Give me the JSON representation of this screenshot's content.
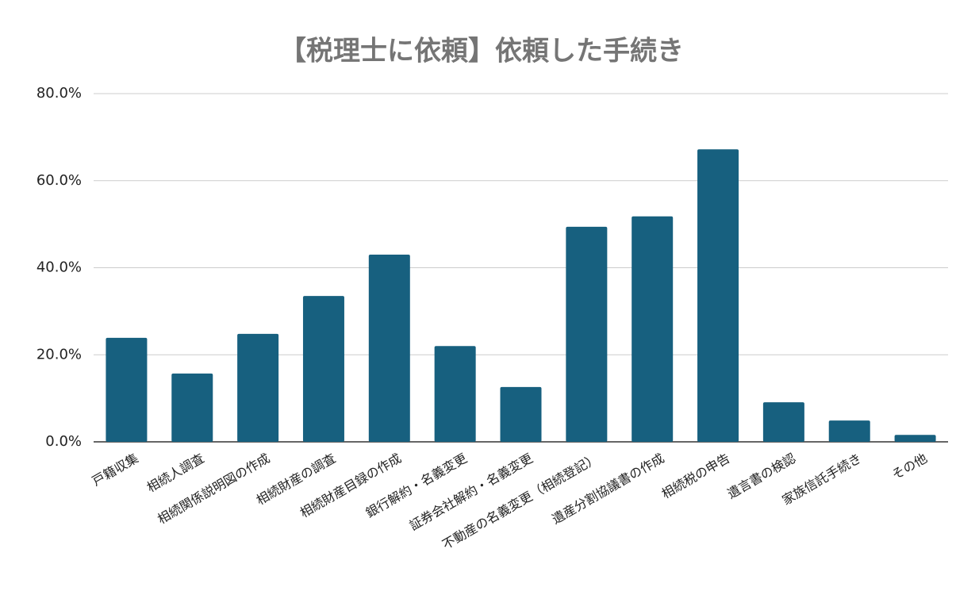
{
  "chart_data": {
    "type": "bar",
    "title": "【税理士に依頼】依頼した手続き",
    "categories": [
      "戸籍収集",
      "相続人調査",
      "相続関係説明図の作成",
      "相続財産の調査",
      "相続財産目録の作成",
      "銀行解約・名義変更",
      "証券会社解約・名義変更",
      "不動産の名義変更（相続登記）",
      "遺産分割協議書の作成",
      "相続税の申告",
      "遺言書の検認",
      "家族信託手続き",
      "その他"
    ],
    "values": [
      23.9,
      15.7,
      24.8,
      33.5,
      43.0,
      22.0,
      12.6,
      49.4,
      51.8,
      67.2,
      9.1,
      4.9,
      1.6
    ],
    "color": "#17607f",
    "ylim": [
      0,
      80
    ],
    "yticks": [
      {
        "value": 0,
        "label": "0.0%"
      },
      {
        "value": 20,
        "label": "20.0%"
      },
      {
        "value": 40,
        "label": "40.0%"
      },
      {
        "value": 60,
        "label": "60.0%"
      },
      {
        "value": 80,
        "label": "80.0%"
      }
    ],
    "grid": true
  }
}
